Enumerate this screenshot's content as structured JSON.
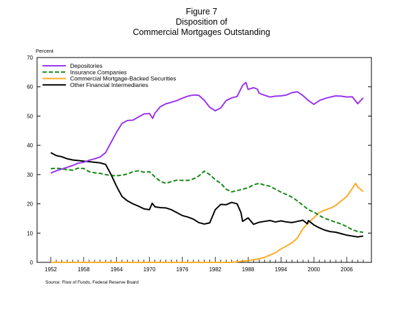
{
  "chart_data": {
    "type": "line",
    "title_lines": [
      "Figure 7",
      "Disposition of",
      "Commercial Mortgages Outstanding"
    ],
    "ylabel": "Percent",
    "xlabel": "",
    "source": "Source: Flow of Funds, Federal Reserve Board",
    "xlim": [
      1949.5,
      2010.5
    ],
    "ylim": [
      0,
      70
    ],
    "yticks": [
      0,
      10,
      20,
      30,
      40,
      50,
      60,
      70
    ],
    "xticks": [
      1952,
      1958,
      1964,
      1970,
      1976,
      1982,
      1988,
      1994,
      2000,
      2006
    ],
    "grid": false,
    "legend_position": "top-left",
    "series": [
      {
        "name": "Depositories",
        "color": "#9933ee",
        "dash": "solid",
        "x": [
          1952,
          1953,
          1954,
          1955,
          1956,
          1957,
          1958,
          1959,
          1960,
          1961,
          1962,
          1963,
          1964,
          1965,
          1966,
          1967,
          1968,
          1969,
          1970,
          1970.6,
          1971,
          1972,
          1973,
          1974,
          1975,
          1976,
          1977,
          1978,
          1979,
          1980,
          1981,
          1982,
          1983,
          1984,
          1985,
          1986,
          1987,
          1987.6,
          1988,
          1989,
          1989.7,
          1990,
          1991,
          1992,
          1993,
          1994,
          1995,
          1996,
          1997,
          1998,
          1999,
          2000,
          2001,
          2002,
          2003,
          2004,
          2005,
          2006,
          2007,
          2008,
          2009
        ],
        "y": [
          30.5,
          31.3,
          31.9,
          32.5,
          33.1,
          33.9,
          34.2,
          34.9,
          35.4,
          36,
          37.5,
          41,
          44.5,
          47.5,
          48.5,
          48.6,
          49.7,
          50.7,
          50.9,
          49.2,
          51,
          53.2,
          54.2,
          54.7,
          55.3,
          56.1,
          56.8,
          57.2,
          57.1,
          55.4,
          53,
          51.8,
          52.8,
          55.3,
          56.2,
          56.7,
          60.5,
          61.5,
          59.1,
          59.7,
          59.2,
          57.8,
          57.1,
          56.5,
          56.8,
          56.9,
          57.2,
          58,
          58.3,
          57,
          55.3,
          54,
          55.3,
          56,
          56.5,
          56.9,
          56.8,
          56.5,
          56.6,
          54.2,
          56.2
        ]
      },
      {
        "name": "Insurance Companies",
        "color": "#118811",
        "dash": "dashed",
        "x": [
          1952,
          1953,
          1954,
          1955,
          1956,
          1957,
          1958,
          1959,
          1960,
          1961,
          1962,
          1963,
          1964,
          1965,
          1966,
          1967,
          1968,
          1969,
          1970,
          1971,
          1972,
          1973,
          1974,
          1975,
          1976,
          1977,
          1978,
          1979,
          1980,
          1981,
          1982,
          1983,
          1984,
          1985,
          1986,
          1987,
          1988,
          1989,
          1990,
          1991,
          1992,
          1993,
          1994,
          1995,
          1996,
          1997,
          1998,
          1999,
          2000,
          2001,
          2002,
          2003,
          2004,
          2005,
          2006,
          2007,
          2008,
          2009
        ],
        "y": [
          32,
          32.2,
          32,
          31.7,
          31.5,
          32.2,
          32.1,
          31,
          30.6,
          30.4,
          30,
          29.7,
          29.6,
          29.8,
          30.2,
          31,
          31.3,
          30.8,
          31,
          29.2,
          27.7,
          27,
          27.6,
          28.1,
          28,
          28,
          28.5,
          29.5,
          31.2,
          30,
          28.3,
          27,
          25,
          24.1,
          24.5,
          25,
          25.5,
          26.5,
          27,
          26.4,
          26,
          25,
          24,
          23.2,
          22.3,
          21,
          19.5,
          18,
          17.2,
          16,
          15,
          14.4,
          13.7,
          13.1,
          12.2,
          11.2,
          10.5,
          10.3
        ]
      },
      {
        "name": "Commercial Mortgage-Backed Securities",
        "color": "#ffaa22",
        "dash": "solid",
        "x": [
          1952,
          1985,
          1986,
          1987,
          1988,
          1989,
          1990,
          1991,
          1992,
          1993,
          1994,
          1995,
          1996,
          1997,
          1998,
          1999,
          2000,
          2001,
          2002,
          2003,
          2004,
          2005,
          2006,
          2007,
          2007.6,
          2008,
          2009
        ],
        "y": [
          0,
          0,
          0.2,
          0.4,
          0.6,
          0.9,
          1.2,
          1.7,
          2.5,
          3.3,
          4.6,
          5.6,
          6.7,
          8.3,
          11.5,
          13.5,
          15.3,
          17,
          17.9,
          18.5,
          19.5,
          21,
          22.5,
          25.2,
          27,
          25.8,
          24.2
        ]
      },
      {
        "name": "Other Financial Intermediaries",
        "color": "#000000",
        "dash": "solid",
        "x": [
          1952,
          1953,
          1954,
          1955,
          1956,
          1957,
          1958,
          1959,
          1960,
          1961,
          1962,
          1963,
          1964,
          1965,
          1966,
          1967,
          1968,
          1969,
          1970,
          1970.5,
          1971,
          1972,
          1973,
          1974,
          1975,
          1976,
          1977,
          1978,
          1979,
          1980,
          1981,
          1982,
          1983,
          1984,
          1985,
          1986,
          1986.7,
          1987,
          1988,
          1989,
          1990,
          1991,
          1992,
          1993,
          1994,
          1995,
          1996,
          1997,
          1998,
          1998.8,
          1999,
          2000,
          2001,
          2002,
          2003,
          2004,
          2005,
          2006,
          2007,
          2008,
          2009
        ],
        "y": [
          37.5,
          36.5,
          36.1,
          35.4,
          35,
          34.8,
          34.6,
          34.4,
          34.2,
          34,
          33.5,
          30,
          26,
          22.5,
          21,
          20,
          19.2,
          18.3,
          18,
          20.2,
          19,
          18.7,
          18.6,
          18,
          17,
          16,
          15.5,
          14.8,
          13.6,
          13.1,
          13.5,
          18,
          19.8,
          19.7,
          20.5,
          20,
          17,
          14,
          15.2,
          13,
          13.7,
          14,
          14.3,
          13.8,
          14.2,
          13.8,
          13.6,
          14,
          14.4,
          13.2,
          14.3,
          12.8,
          11.8,
          11,
          10.5,
          10.3,
          9.8,
          9.3,
          9,
          8.7,
          9
        ]
      }
    ]
  }
}
